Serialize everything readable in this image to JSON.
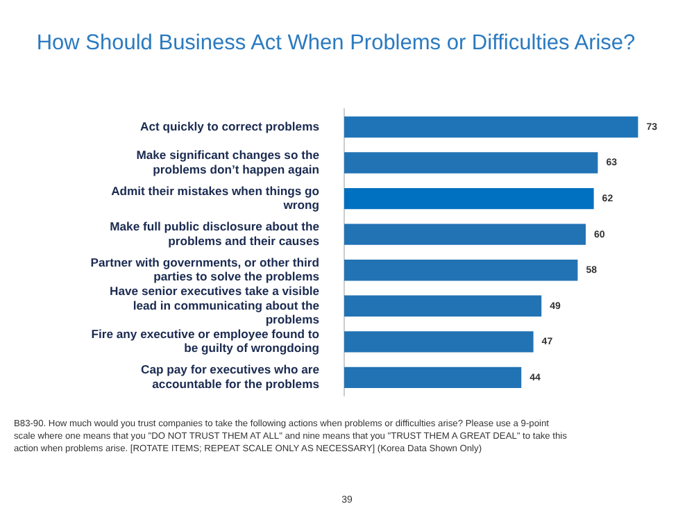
{
  "chart_data": {
    "type": "bar",
    "orientation": "horizontal",
    "title": "How Should Business Act When Problems or Difficulties Arise?",
    "categories": [
      "Act quickly to correct problems",
      "Make significant changes so the problems don’t happen again",
      "Admit their mistakes when things go wrong",
      "Make full public disclosure about the problems and their causes",
      "Partner with governments, or other third parties to solve the problems",
      "Have senior executives take a visible lead in communicating about the problems",
      "Fire any executive or employee found to be guilty of wrongdoing",
      "Cap pay for executives who are accountable for the problems"
    ],
    "values": [
      73,
      63,
      62,
      60,
      58,
      49,
      47,
      44
    ],
    "colors": [
      "#1f74b8",
      "#2273b4",
      "#0070c0",
      "#2273b4",
      "#2273b4",
      "#2273b4",
      "#2273b4",
      "#2273b4"
    ],
    "tick_labels": "y",
    "data_labels": true,
    "annotations": [
      "B83-90.  How much would you trust companies to take the following actions when problems or difficulties arise?  Please use a 9-point scale where one means that you \"DO NOT TRUST THEM AT ALL\" and nine means that you \"TRUST THEM A GREAT DEAL\" to take this action when problems arise.     [ROTATE ITEMS; REPEAT SCALE ONLY AS NECESSARY]  (Korea Data Shown Only)",
      "39"
    ]
  }
}
